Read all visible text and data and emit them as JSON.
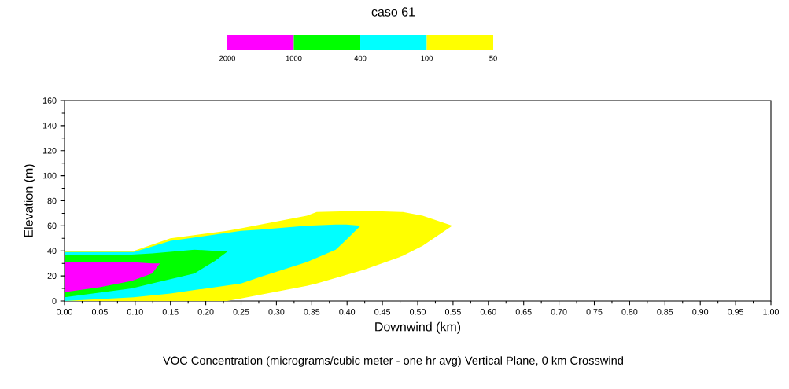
{
  "chart_data": {
    "type": "area",
    "title": "caso 61",
    "xlabel": "Downwind (km)",
    "ylabel": "Elevation (m)",
    "annotations": [
      "2000",
      "1000",
      "400",
      "100",
      "50",
      "VOC Concentration (micrograms/cubic meter - one hr avg) Vertical Plane, 0 km Crosswind"
    ],
    "xlim": [
      0,
      1
    ],
    "ylim": [
      0,
      160
    ],
    "xticks": [
      {
        "value": 0,
        "label": "0.00"
      },
      {
        "value": 0.05,
        "label": "0.05"
      },
      {
        "value": 0.1,
        "label": "0.10"
      },
      {
        "value": 0.15,
        "label": "0.15"
      },
      {
        "value": 0.2,
        "label": "0.20"
      },
      {
        "value": 0.25,
        "label": "0.25"
      },
      {
        "value": 0.3,
        "label": "0.30"
      },
      {
        "value": 0.35,
        "label": "0.35"
      },
      {
        "value": 0.4,
        "label": "0.40"
      },
      {
        "value": 0.45,
        "label": "0.45"
      },
      {
        "value": 0.5,
        "label": "0.50"
      },
      {
        "value": 0.55,
        "label": "0.55"
      },
      {
        "value": 0.6,
        "label": "0.60"
      },
      {
        "value": 0.65,
        "label": "0.65"
      },
      {
        "value": 0.7,
        "label": "0.70"
      },
      {
        "value": 0.75,
        "label": "0.75"
      },
      {
        "value": 0.8,
        "label": "0.80"
      },
      {
        "value": 0.85,
        "label": "0.85"
      },
      {
        "value": 0.9,
        "label": "0.90"
      },
      {
        "value": 0.95,
        "label": "0.95"
      },
      {
        "value": 1,
        "label": "1.00"
      }
    ],
    "yticks": [
      0,
      20,
      40,
      60,
      80,
      100,
      120,
      140,
      160
    ],
    "series": [
      {
        "color": "#ff00ff",
        "x": [
          0,
          0.05,
          0.095,
          0.124,
          0.135
        ],
        "values": [
          null,
          null,
          null,
          null,
          null
        ],
        "upper": [
          31,
          31,
          31,
          30,
          30
        ],
        "lower": [
          7,
          11,
          16,
          22,
          30
        ]
      },
      {
        "color": "#00ff00",
        "x": [
          0,
          0.095,
          0.124,
          0.184,
          0.213,
          0.232
        ],
        "values": [
          null,
          null,
          null,
          null,
          null,
          null
        ],
        "upper": [
          37,
          37,
          38,
          41,
          40,
          40
        ],
        "lower": [
          3,
          10,
          14,
          22,
          32,
          40
        ]
      },
      {
        "color": "#00ffff",
        "x": [
          0,
          0.098,
          0.15,
          0.25,
          0.276,
          0.343,
          0.384,
          0.399,
          0.419
        ],
        "values": [
          null,
          null,
          null,
          null,
          null,
          null,
          null,
          null,
          null
        ],
        "upper": [
          39,
          39,
          48,
          56,
          57,
          60,
          61,
          61,
          60
        ],
        "lower": [
          0,
          3,
          6,
          14,
          19,
          31,
          41,
          49,
          60
        ]
      },
      {
        "color": "#ffff00",
        "x": [
          0,
          0.098,
          0.15,
          0.23,
          0.25,
          0.343,
          0.357,
          0.424,
          0.479,
          0.507,
          0.549
        ],
        "values": [
          null,
          null,
          null,
          null,
          null,
          null,
          null,
          null,
          null,
          null,
          null
        ],
        "upper": [
          40,
          40,
          50,
          56,
          58,
          68,
          71,
          72,
          71,
          68,
          60
        ],
        "lower": [
          0,
          0,
          0,
          0,
          2,
          12,
          14,
          25,
          36,
          44,
          60
        ]
      }
    ]
  }
}
